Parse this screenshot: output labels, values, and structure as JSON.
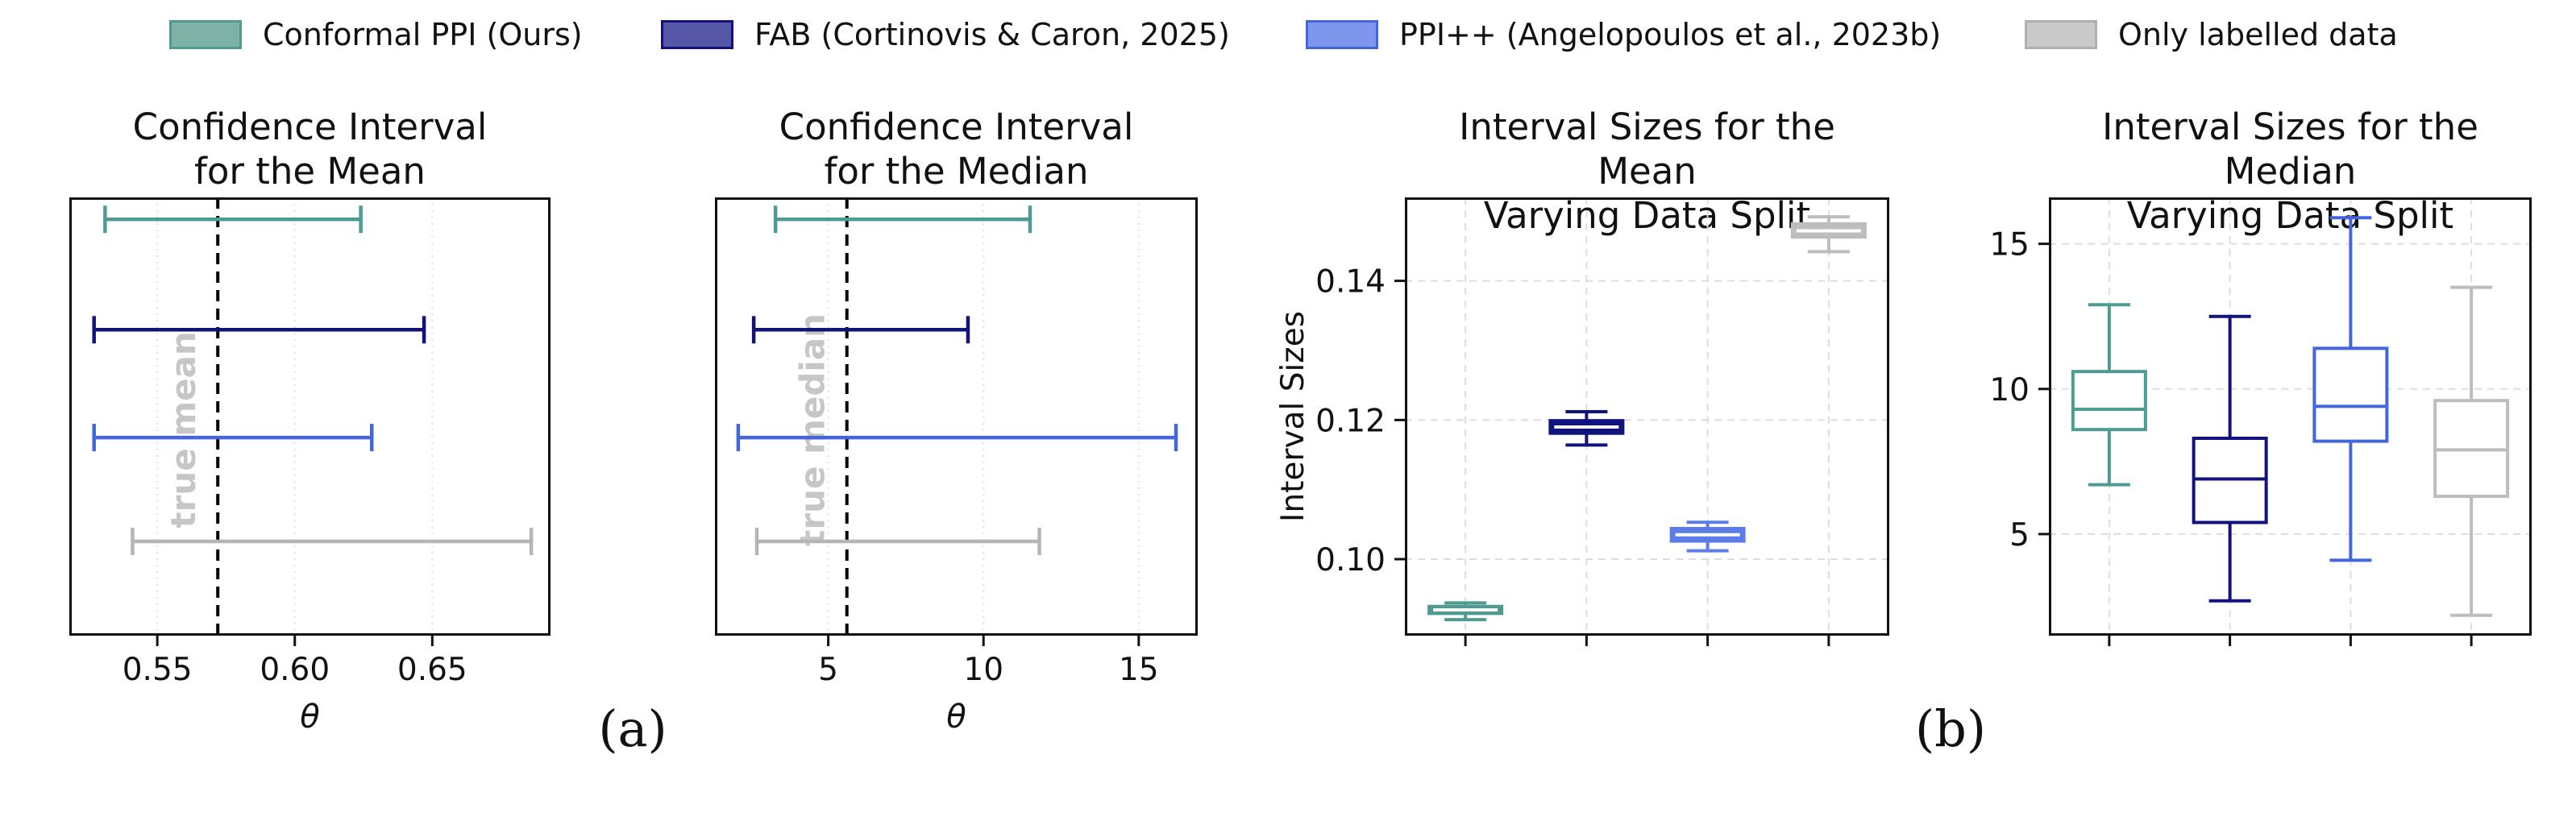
{
  "legend": {
    "items": [
      {
        "label": "Conformal PPI (Ours)",
        "fill": "#7FB2A6",
        "border": "#4E9B8F"
      },
      {
        "label": "FAB (Cortinovis & Caron, 2025)",
        "fill": "#5757A8",
        "border": "#12127D"
      },
      {
        "label": "PPI++ (Angelopoulos et al., 2023b)",
        "fill": "#7E97EC",
        "border": "#4466DD"
      },
      {
        "label": "Only labelled data",
        "fill": "#C9C9C9",
        "border": "#AFAFAF"
      }
    ]
  },
  "captions": {
    "a": "(a)",
    "b": "(b)"
  },
  "chart_data": [
    {
      "type": "interval",
      "title": "Confidence Interval\nfor the Mean",
      "xlabel": "θ",
      "xlim": [
        0.518,
        0.693
      ],
      "xtick_values": [
        0.55,
        0.6,
        0.65
      ],
      "xtick_labels": [
        "0.55",
        "0.60",
        "0.65"
      ],
      "reference_line": {
        "value": 0.572,
        "label": "true mean"
      },
      "series": [
        {
          "name": "Conformal PPI (Ours)",
          "key": "conformal-ppi",
          "color": "#4E9B8F",
          "interval": [
            0.531,
            0.624
          ]
        },
        {
          "name": "FAB (Cortinovis & Caron, 2025)",
          "key": "fab",
          "color": "#12127D",
          "interval": [
            0.527,
            0.647
          ]
        },
        {
          "name": "PPI++ (Angelopoulos et al., 2023b)",
          "key": "ppi-plus-plus",
          "color": "#4466DD",
          "interval": [
            0.527,
            0.628
          ]
        },
        {
          "name": "Only labelled data",
          "key": "only-labelled",
          "color": "#B5B5B5",
          "interval": [
            0.541,
            0.686
          ]
        }
      ]
    },
    {
      "type": "interval",
      "title": "Confidence Interval\nfor the Median",
      "xlabel": "θ",
      "xlim": [
        1.35,
        16.9
      ],
      "xtick_values": [
        5,
        10,
        15
      ],
      "xtick_labels": [
        "5",
        "10",
        "15"
      ],
      "reference_line": {
        "value": 5.6,
        "label": "true median"
      },
      "series": [
        {
          "name": "Conformal PPI (Ours)",
          "key": "conformal-ppi",
          "color": "#4E9B8F",
          "interval": [
            3.3,
            11.5
          ]
        },
        {
          "name": "FAB (Cortinovis & Caron, 2025)",
          "key": "fab",
          "color": "#12127D",
          "interval": [
            2.6,
            9.5
          ]
        },
        {
          "name": "PPI++ (Angelopoulos et al., 2023b)",
          "key": "ppi-plus-plus",
          "color": "#4466DD",
          "interval": [
            2.1,
            16.2
          ]
        },
        {
          "name": "Only labelled data",
          "key": "only-labelled",
          "color": "#B5B5B5",
          "interval": [
            2.7,
            11.8
          ]
        }
      ]
    },
    {
      "type": "box",
      "title": "Interval Sizes for the Mean\nVarying Data Split",
      "ylabel": "Interval Sizes",
      "ylim": [
        0.089,
        0.152
      ],
      "ytick_values": [
        0.1,
        0.12,
        0.14
      ],
      "ytick_labels": [
        "0.10",
        "0.12",
        "0.14"
      ],
      "boxes": [
        {
          "name": "Conformal PPI (Ours)",
          "key": "conformal-ppi",
          "color": "#4E9B8F",
          "filled": true,
          "median": 0.0927,
          "q1": 0.0922,
          "q3": 0.0932,
          "whisker_low": 0.0913,
          "whisker_high": 0.0937
        },
        {
          "name": "FAB (Cortinovis & Caron, 2025)",
          "key": "fab",
          "color": "#12127D",
          "filled": true,
          "median": 0.119,
          "q1": 0.1181,
          "q3": 0.1199,
          "whisker_low": 0.1164,
          "whisker_high": 0.1212
        },
        {
          "name": "PPI++ (Angelopoulos et al., 2023b)",
          "key": "ppi-plus-plus",
          "color": "#5C7CE6",
          "filled": true,
          "median": 0.1035,
          "q1": 0.1026,
          "q3": 0.1044,
          "whisker_low": 0.1012,
          "whisker_high": 0.1053
        },
        {
          "name": "Only labelled data",
          "key": "only-labelled",
          "color": "#BDBDBD",
          "filled": true,
          "median": 0.1472,
          "q1": 0.1463,
          "q3": 0.1482,
          "whisker_low": 0.1442,
          "whisker_high": 0.1492
        }
      ]
    },
    {
      "type": "box",
      "title": "Interval Sizes for the Median\nVarying Data Split",
      "ylabel": "",
      "ylim": [
        1.5,
        16.6
      ],
      "ytick_values": [
        5,
        10,
        15
      ],
      "ytick_labels": [
        "5",
        "10",
        "15"
      ],
      "boxes": [
        {
          "name": "Conformal PPI (Ours)",
          "key": "conformal-ppi",
          "color": "#4E9B8F",
          "filled": false,
          "median": 9.3,
          "q1": 8.6,
          "q3": 10.6,
          "whisker_low": 6.7,
          "whisker_high": 12.9
        },
        {
          "name": "FAB (Cortinovis & Caron, 2025)",
          "key": "fab",
          "color": "#12127D",
          "filled": false,
          "median": 6.9,
          "q1": 5.4,
          "q3": 8.3,
          "whisker_low": 2.7,
          "whisker_high": 12.5
        },
        {
          "name": "PPI++ (Angelopoulos et al., 2023b)",
          "key": "ppi-plus-plus",
          "color": "#4466DD",
          "filled": false,
          "median": 9.4,
          "q1": 8.2,
          "q3": 11.4,
          "whisker_low": 4.1,
          "whisker_high": 15.9
        },
        {
          "name": "Only labelled data",
          "key": "only-labelled",
          "color": "#BDBDBD",
          "filled": false,
          "median": 7.9,
          "q1": 6.3,
          "q3": 9.6,
          "whisker_low": 2.2,
          "whisker_high": 13.5
        }
      ]
    }
  ]
}
